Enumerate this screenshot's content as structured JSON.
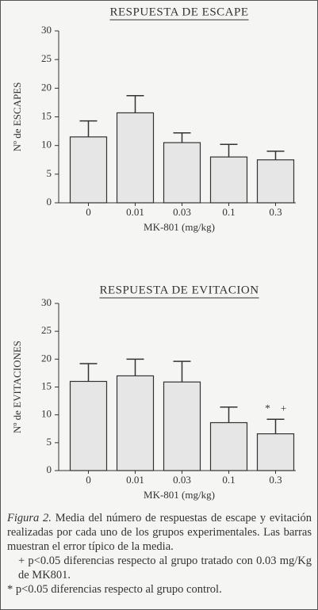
{
  "chart_data": [
    {
      "type": "bar",
      "title": "RESPUESTA DE ESCAPE",
      "x_label": "MK-801  (mg/kg)",
      "y_label": "Nº de ESCAPES",
      "categories": [
        "0",
        "0.01",
        "0.03",
        "0.1",
        "0.3"
      ],
      "values": [
        11.5,
        15.7,
        10.5,
        8.0,
        7.5
      ],
      "errors": [
        2.8,
        3.0,
        1.7,
        2.2,
        1.5
      ],
      "color": "#e6e6e6",
      "ylim": [
        0,
        30
      ],
      "yticks": [
        0,
        5,
        10,
        15,
        20,
        25,
        30
      ]
    },
    {
      "type": "bar",
      "title": "RESPUESTA DE EVITACION",
      "x_label": "MK-801  (mg/kg)",
      "y_label": "Nº de EVITACIONES",
      "categories": [
        "0",
        "0.01",
        "0.03",
        "0.1",
        "0.3"
      ],
      "values": [
        16.0,
        17.0,
        15.9,
        8.6,
        6.6
      ],
      "errors": [
        3.2,
        3.0,
        3.7,
        2.8,
        2.6
      ],
      "color": "#e6e6e6",
      "ylim": [
        0,
        30
      ],
      "yticks": [
        0,
        5,
        10,
        15,
        20,
        25,
        30
      ],
      "annotations": [
        "*",
        "+"
      ]
    }
  ],
  "caption": {
    "label": "Figura 2.",
    "text": "Media del número de respuestas de escape y evitación realizadas por cada uno de los grupos experimentales. Las barras muestran el error típico de la media.",
    "note_1": "+ p<0.05 diferencias respecto al grupo tratado con 0.03 mg/Kg de MK801.",
    "note_2": "* p<0.05 diferencias respecto al grupo control."
  }
}
